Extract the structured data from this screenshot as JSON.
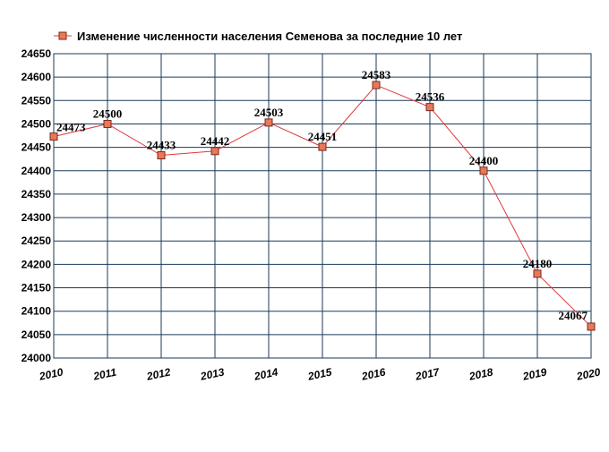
{
  "chart_data": {
    "type": "line",
    "title": "",
    "xlabel": "",
    "ylabel": "",
    "x": [
      "2010",
      "2011",
      "2012",
      "2013",
      "2014",
      "2015",
      "2016",
      "2017",
      "2018",
      "2019",
      "2020"
    ],
    "series": [
      {
        "name": "Изменение численности населения Семенова за последние 10 лет",
        "values": [
          24473,
          24500,
          24433,
          24442,
          24503,
          24451,
          24583,
          24536,
          24400,
          24180,
          24067
        ],
        "color": "#e0373a",
        "marker_color": "#e8785a"
      }
    ],
    "ylim": [
      24000,
      24650
    ],
    "yticks": [
      24000,
      24050,
      24100,
      24150,
      24200,
      24250,
      24300,
      24350,
      24400,
      24450,
      24500,
      24550,
      24600,
      24650
    ],
    "grid": true,
    "grid_color": "#1a3a5a",
    "legend_placement": "top"
  }
}
